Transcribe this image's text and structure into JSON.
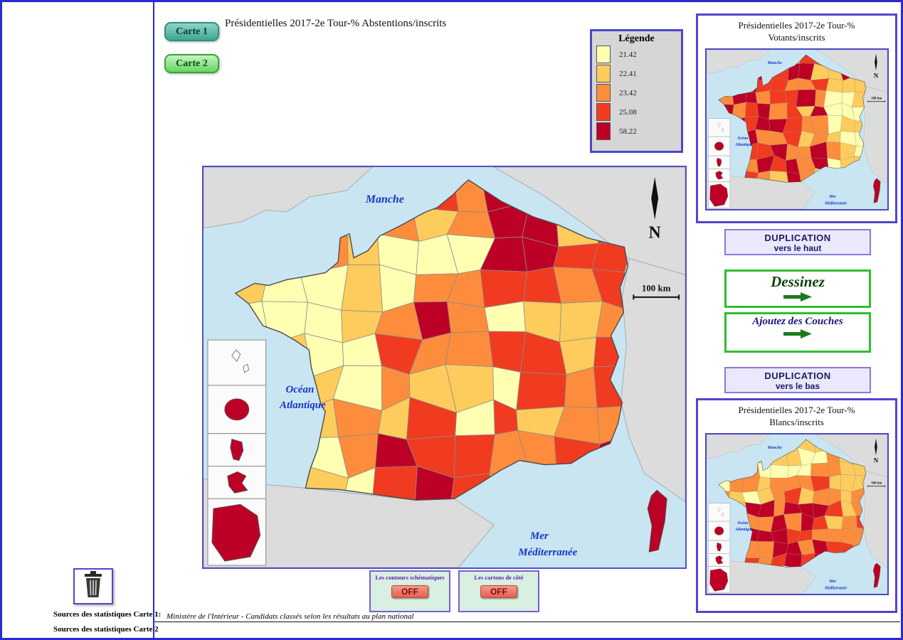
{
  "toolbar": {
    "carte1_label": "Carte 1",
    "carte2_label": "Carte 2"
  },
  "main_map": {
    "title": "Présidentielles 2017-2e Tour-% Abstentions/inscrits",
    "legend": {
      "title": "Légende",
      "entries": [
        {
          "color": "#FFFFB2",
          "label": "21.42"
        },
        {
          "color": "#FECC5C",
          "label": "22.41"
        },
        {
          "color": "#FD8D3C",
          "label": "23.42"
        },
        {
          "color": "#F03B20",
          "label": "25.08"
        },
        {
          "color": "#BD0026",
          "label": "58.22"
        }
      ]
    },
    "labels": {
      "channel": "Manche",
      "ocean_line1": "Océan",
      "ocean_line2": "Atlantique",
      "sea_line1": "Mer",
      "sea_line2": "Méditerranée",
      "north": "N",
      "scale": "100 km"
    },
    "toggles": [
      {
        "label": "Les contours schématiques",
        "state": "OFF"
      },
      {
        "label": "Les cartons de côté",
        "state": "OFF"
      }
    ]
  },
  "map_colors": {
    "sea": "#C9E5F2",
    "land": "#DCDCDC",
    "land_stroke": "#ABABAB",
    "fill_base": "#FFFFCC",
    "dept_stroke": "#8C8C8C",
    "outline": "#4A4A4A",
    "sea_label": "#1535C8"
  },
  "right_panel": {
    "top_map": {
      "title_line1": "Présidentielles 2017-2e Tour-%",
      "title_line2": "Votants/inscrits"
    },
    "bottom_map": {
      "title_line1": "Présidentielles 2017-2e Tour-%",
      "title_line2": "Blancs/inscrits"
    },
    "buttons": {
      "dup_up_line1": "DUPLICATION",
      "dup_up_line2": "vers le haut",
      "dessinez": "Dessinez",
      "ajoutez": "Ajoutez des Couches",
      "dup_down_line1": "DUPLICATION",
      "dup_down_line2": "vers le bas"
    }
  },
  "footer": {
    "source1_label": "Sources des statistiques Carte 1:",
    "source1_text": "Ministère de l'Intérieur - Candidats classés selon les résultats au plan national",
    "source2_label": "Sources des statistiques Carte 2"
  }
}
